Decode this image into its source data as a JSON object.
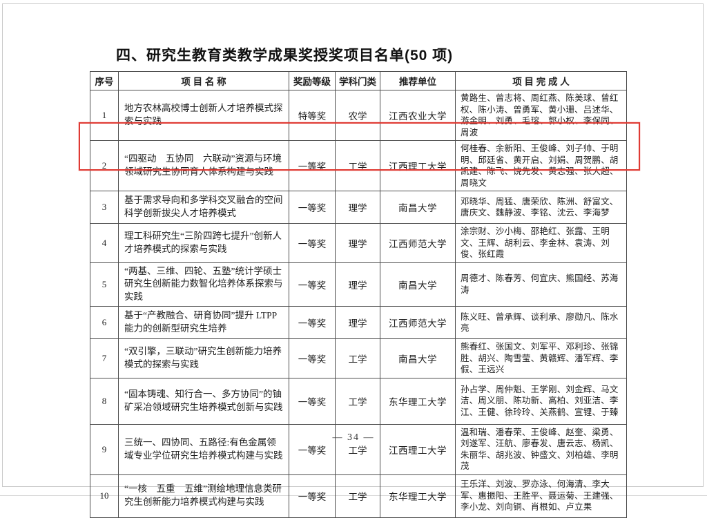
{
  "page": {
    "title": "四、研究生教育类教学成果奖授奖项目名单(50 项)",
    "page_number": "—  34  —"
  },
  "annotation": {
    "highlight_color": "#df3a33",
    "highlighted_row_no": "2"
  },
  "table": {
    "headers": [
      "序号",
      "项  目  名  称",
      "奖励等级",
      "学科门类",
      "推荐单位",
      "项 目 完 成 人"
    ],
    "rows": [
      {
        "no": "1",
        "name": "地方农林高校博士创新人才培养模式探索与实践",
        "award": "特等奖",
        "discipline": "农学",
        "unit": "江西农业大学",
        "members": "黄路生、曾志将、周红燕、陈美球、曾红权、陈小涛、曾勇军、黄小珊、吕述华、游金明、刘勇、毛瑢、郭小权、李保同、周波"
      },
      {
        "no": "2",
        "name": "“四驱动　五协同　六联动”资源与环境领域研究生协同育人体系构建与实践",
        "award": "一等奖",
        "discipline": "工学",
        "unit": "江西理工大学",
        "members": "何桂春、余新阳、王俊峰、刘子帅、于明明、邱廷省、黄开启、刘娟、周贺鹏、胡凯建、陈飞、饶先发、黄志强、张大超、周晓文"
      },
      {
        "no": "3",
        "name": "基于需求导向和多学科交叉融合的空间科学创新拔尖人才培养模式",
        "award": "一等奖",
        "discipline": "理学",
        "unit": "南昌大学",
        "members": "邓晓华、周猛、唐荣欣、陈洲、舒富文、唐庆文、魏静波、李铭、沈云、李海梦"
      },
      {
        "no": "4",
        "name": "理工科研究生“三阶四跨七提升”创新人才培养模式的探索与实践",
        "award": "一等奖",
        "discipline": "理学",
        "unit": "江西师范大学",
        "members": "涂宗财、沙小梅、邵艳红、张露、王明文、王辉、胡利云、李金林、袁涛、刘俊、张红霞"
      },
      {
        "no": "5",
        "name": "“两基、三维、四轮、五塾”统计学硕士研究生创新能力数智化培养体系探索与实践",
        "award": "一等奖",
        "discipline": "理学",
        "unit": "南昌大学",
        "members": "周德才、陈春芳、何宜庆、熊国经、苏海涛"
      },
      {
        "no": "6",
        "name": "基于“产教融合、研育协同”提升 LTPP 能力的创新型研究生培养",
        "award": "一等奖",
        "discipline": "理学",
        "unit": "江西师范大学",
        "members": "陈义旺、曾承辉、谈利承、廖勋凡、陈水亮"
      },
      {
        "no": "7",
        "name": "“双引擎，三联动”研究生创新能力培养模式的探索与实践",
        "award": "一等奖",
        "discipline": "工学",
        "unit": "南昌大学",
        "members": "熊春红、张国文、刘军平、邓利珍、张锦胜、胡兴、陶雪莹、黄赣辉、潘军辉、李假、王远兴"
      },
      {
        "no": "8",
        "name": "“固本铸魂、知行合一、多方协同”的铀矿采冶领域研究生培养模式创新与实践",
        "award": "一等奖",
        "discipline": "工学",
        "unit": "东华理工大学",
        "members": "孙占学、周仲魁、王学刚、刘金辉、马文洁、周义朋、陈功新、高柏、刘亚洁、李江、王健、徐玲玲、关燕鹤、宣锂、于臻"
      },
      {
        "no": "9",
        "name": "三统一、四协同、五路径:有色金属领域专业学位研究生培养模式构建与实践",
        "award": "一等奖",
        "discipline": "工学",
        "unit": "江西理工大学",
        "members": "温和瑞、潘春荣、王俊峰、赵奎、梁勇、刘遂军、汪航、廖春发、唐云志、杨凯、朱丽华、胡兆波、钟盛文、刘柏雄、李明茂"
      },
      {
        "no": "10",
        "name": "“一核　五重　五维”测绘地理信息类研究生创新能力培养模式构建与实践",
        "award": "一等奖",
        "discipline": "工学",
        "unit": "东华理工大学",
        "members": "王乐洋、刘波、罗亦泳、何海清、李大军、惠振阳、王胜平、聂运菊、王建强、李小龙、刘向铜、肖根如、卢立果"
      }
    ]
  }
}
